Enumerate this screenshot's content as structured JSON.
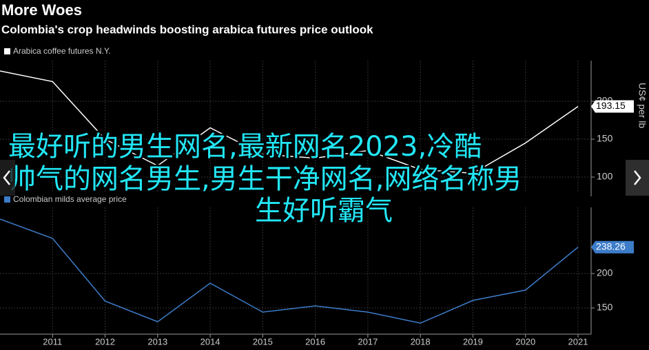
{
  "header": {
    "title": "More Woes",
    "subtitle": "Colombia's crop headwinds boosting arabica futures price outlook"
  },
  "chart_data": [
    {
      "type": "line",
      "y_label": "US¢ per lb",
      "x": [
        2010,
        2011,
        2012,
        2013,
        2014,
        2015,
        2016,
        2017,
        2018,
        2019,
        2020,
        2021
      ],
      "series": [
        {
          "name": "Arabica coffee futures N.Y.",
          "color": "#ffffff",
          "values": [
            240,
            226,
            150,
            115,
            165,
            130,
            125,
            135,
            110,
            105,
            145,
            193.15
          ]
        }
      ],
      "xlim": [
        2010,
        2021.21
      ],
      "xticks": [
        2011,
        2012,
        2013,
        2014,
        2015,
        2016,
        2017,
        2018,
        2019,
        2020,
        2021
      ],
      "ylim": [
        80,
        250
      ],
      "yticks": [
        100,
        150,
        200
      ],
      "grid": true
    },
    {
      "type": "line",
      "x": [
        2010,
        2011,
        2012,
        2013,
        2014,
        2015,
        2016,
        2017,
        2018,
        2019,
        2020,
        2021
      ],
      "series": [
        {
          "name": "Colombian milds average price",
          "color": "#3d7cc9",
          "values": [
            279,
            251,
            160,
            130,
            186,
            144,
            153,
            144,
            128,
            161,
            176,
            238.26
          ]
        }
      ],
      "xlim": [
        2010,
        2021.21
      ],
      "xticks": [
        2011,
        2012,
        2013,
        2014,
        2015,
        2016,
        2017,
        2018,
        2019,
        2020,
        2021
      ],
      "ylim": [
        112,
        292
      ],
      "yticks": [
        150,
        200
      ],
      "grid": true
    }
  ],
  "overlay_text": [
    "最好听的男生网名,最新网名2023,冷酷",
    "帅气的网名男生,男生干净网名,网络名称男",
    "生好听霸气"
  ]
}
